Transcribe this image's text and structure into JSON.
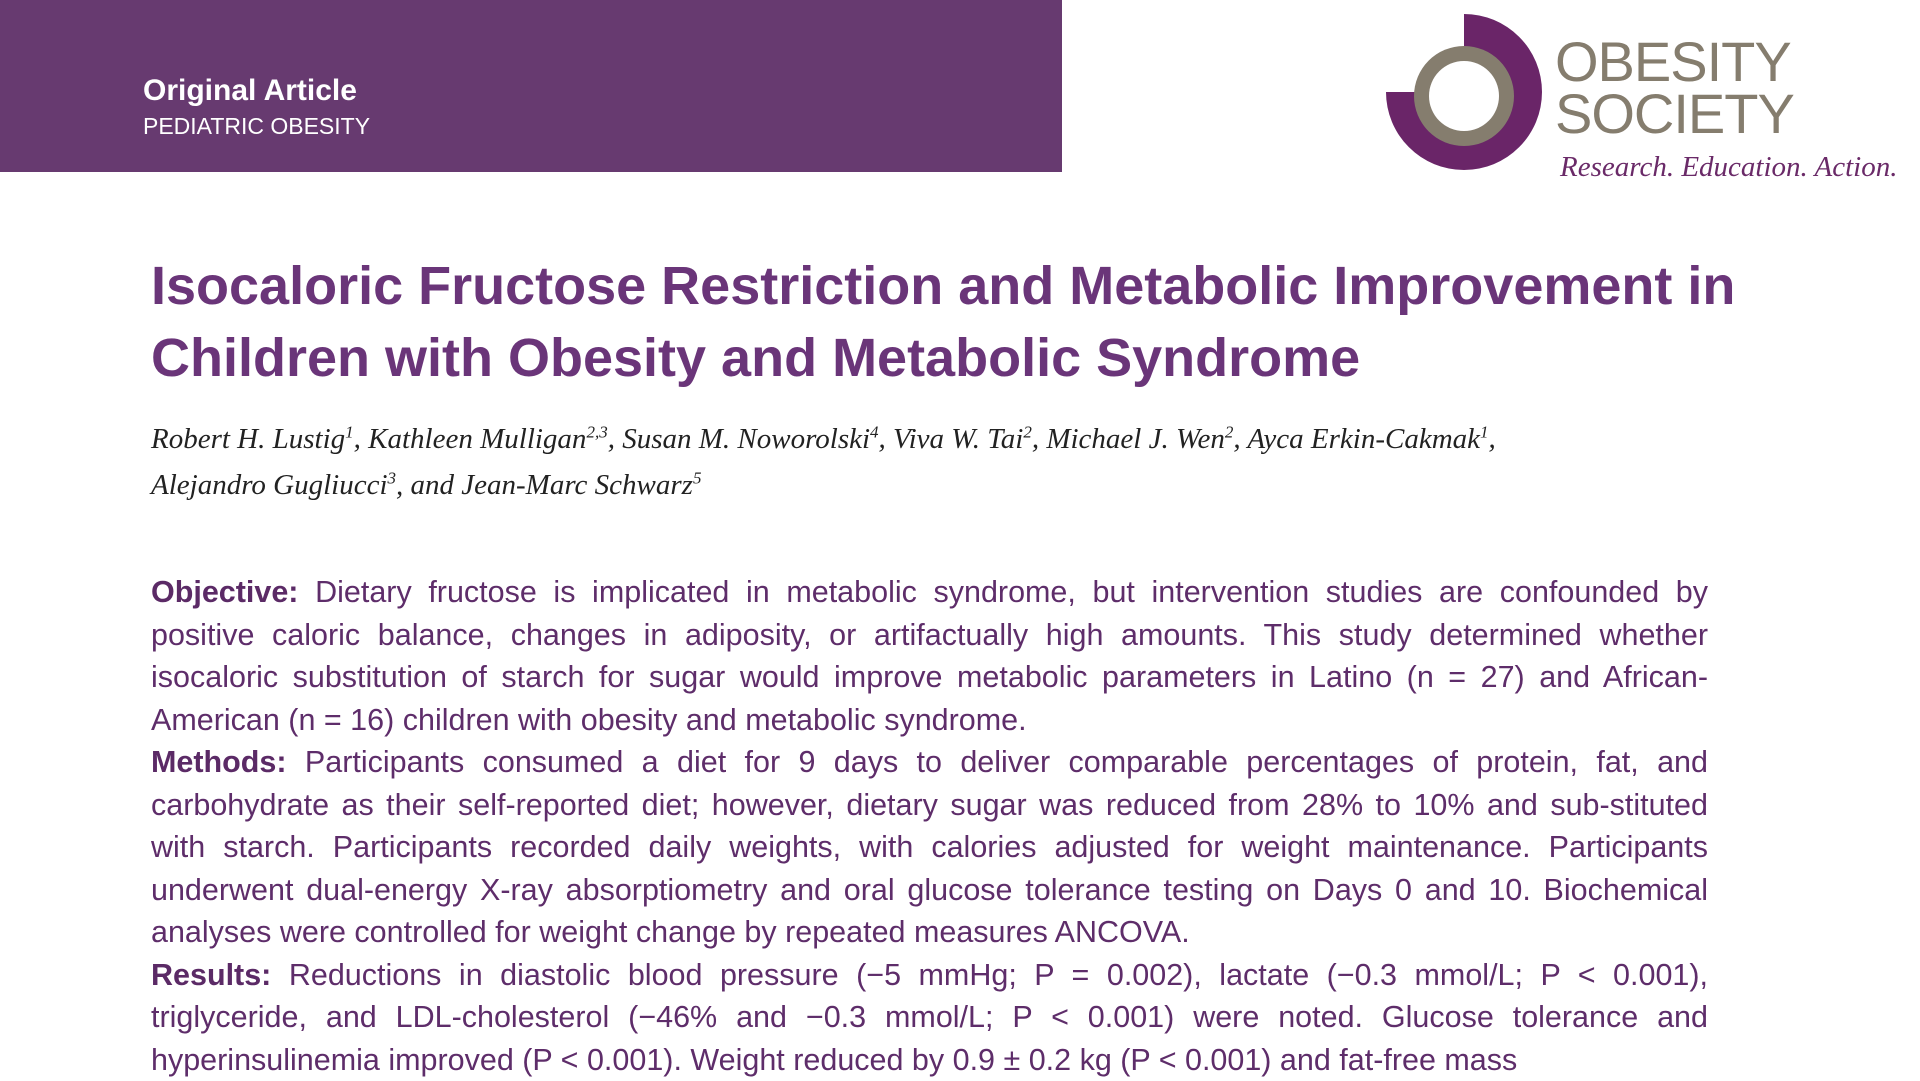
{
  "header": {
    "article_type": "Original Article",
    "section": "PEDIATRIC OBESITY"
  },
  "logo": {
    "line1": "OBESITY",
    "line2": "SOCIETY",
    "tagline": "Research. Education. Action.",
    "colors": {
      "purple": "#6a2568",
      "gray": "#857d6e"
    }
  },
  "title": "Isocaloric Fructose Restriction and Metabolic Improvement in Children with Obesity and Metabolic Syndrome",
  "authors": [
    {
      "name": "Robert H. Lustig",
      "aff": "1"
    },
    {
      "name": "Kathleen Mulligan",
      "aff": "2,3"
    },
    {
      "name": "Susan M. Noworolski",
      "aff": "4"
    },
    {
      "name": "Viva W. Tai",
      "aff": "2"
    },
    {
      "name": "Michael J. Wen",
      "aff": "2"
    },
    {
      "name": "Ayca Erkin-Cakmak",
      "aff": "1"
    },
    {
      "name": "Alejandro Gugliucci",
      "aff": "3"
    },
    {
      "name": "and Jean-Marc Schwarz",
      "aff": "5"
    }
  ],
  "abstract": {
    "objective_label": "Objective:",
    "objective": "Dietary fructose is implicated in metabolic syndrome, but intervention studies are confounded by positive caloric balance, changes in adiposity, or artifactually high amounts. This study determined whether isocaloric substitution of starch for sugar would improve metabolic parameters in Latino (n = 27) and African-American (n = 16) children with obesity and metabolic syndrome.",
    "methods_label": "Methods:",
    "methods": "Participants consumed a diet for 9 days to deliver comparable percentages of protein, fat, and carbohydrate as their self-reported diet; however, dietary sugar was reduced from 28% to 10% and sub-stituted with starch. Participants recorded daily weights, with calories adjusted for weight maintenance. Participants underwent dual-energy X-ray absorptiometry and oral glucose tolerance testing on Days 0 and 10. Biochemical analyses were controlled for weight change by repeated measures ANCOVA.",
    "results_label": "Results:",
    "results": "Reductions in diastolic blood pressure (−5 mmHg; P = 0.002), lactate (−0.3 mmol/L; P < 0.001), triglyceride, and LDL-cholesterol (−46% and −0.3 mmol/L; P < 0.001) were noted. Glucose tolerance and hyperinsulinemia improved (P < 0.001). Weight reduced by 0.9 ± 0.2 kg (P < 0.001) and fat-free mass"
  }
}
